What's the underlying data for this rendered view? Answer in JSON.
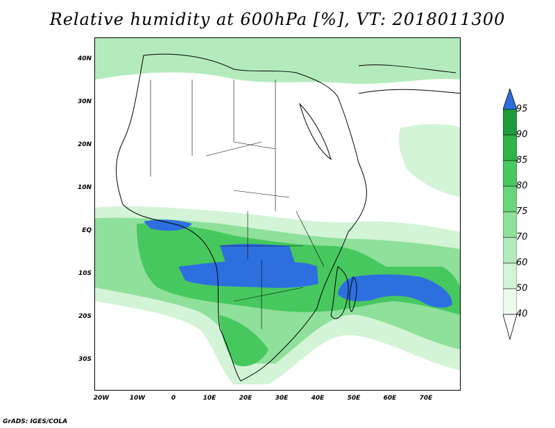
{
  "title": "Relative humidity at 600hPa [%], VT: 2018011300",
  "footer": "GrADS: IGES/COLA",
  "lat_labels": [
    "40N",
    "30N",
    "20N",
    "10N",
    "EQ",
    "10S",
    "20S",
    "30S"
  ],
  "lon_labels": [
    "20W",
    "10W",
    "0",
    "10E",
    "20E",
    "30E",
    "40E",
    "50E",
    "60E",
    "70E"
  ],
  "colorbar": {
    "levels": [
      "95",
      "90",
      "85",
      "80",
      "75",
      "70",
      "60",
      "50",
      "40"
    ],
    "colors": {
      "above_95": "#2e6fe0",
      "90_95": "#1f9a3a",
      "85_90": "#2fb34a",
      "80_85": "#47c85f",
      "75_80": "#6ad57b",
      "70_75": "#8fe09b",
      "60_70": "#b4ebbc",
      "50_60": "#d3f4d7",
      "40_50": "#ebfbed",
      "below_40": "#ffffff"
    }
  },
  "map": {
    "region": "Africa",
    "field": "Relative humidity",
    "level_hPa": 600,
    "valid_time": "2018011300"
  }
}
